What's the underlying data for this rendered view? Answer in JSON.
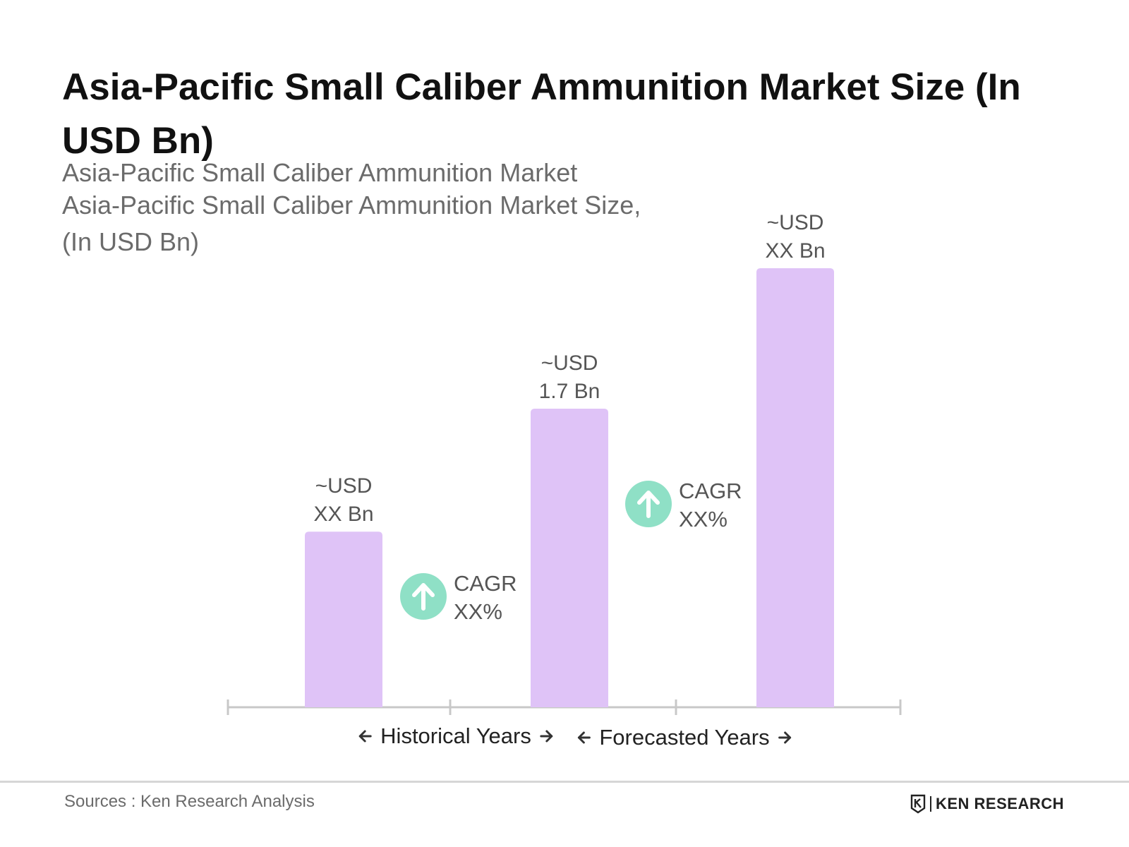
{
  "title": "Asia-Pacific Small Caliber Ammunition Market Size (In USD Bn)",
  "subtitle": {
    "line1": "Asia-Pacific Small Caliber Ammunition Market",
    "line2": "Asia-Pacific Small Caliber Ammunition Market Size,",
    "line3": "(In USD Bn)"
  },
  "chart_data": {
    "type": "bar",
    "categories": [
      "",
      "",
      ""
    ],
    "values": [
      1.0,
      1.7,
      2.5
    ],
    "value_labels": [
      [
        "~USD",
        "XX Bn"
      ],
      [
        "~USD",
        "1.7 Bn"
      ],
      [
        "~USD",
        "XX Bn"
      ]
    ],
    "cagr": [
      {
        "label": "CAGR",
        "value": "XX%"
      },
      {
        "label": "CAGR",
        "value": "XX%"
      }
    ],
    "periods": [
      {
        "label": "Historical Years"
      },
      {
        "label": "Forecasted Years"
      }
    ],
    "ylim": [
      0,
      2.5
    ],
    "grid": false,
    "colors": {
      "bar": "#dfc3f7",
      "cagr_circle": "#8fe0c6",
      "axis": "#c8c8c8"
    }
  },
  "footer": {
    "sources": "Sources : Ken Research Analysis",
    "brand": "KEN RESEARCH"
  }
}
